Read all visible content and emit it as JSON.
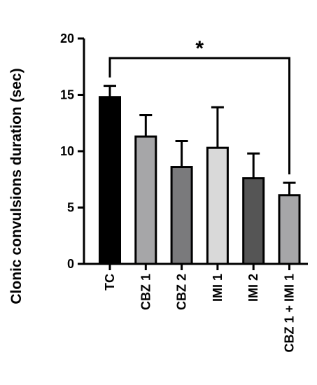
{
  "chart_data": {
    "type": "bar",
    "ylabel": "Clonic convulsions duration (sec)",
    "ylim": [
      0,
      20
    ],
    "yticks": [
      0,
      5,
      10,
      15,
      20
    ],
    "categories": [
      "TC",
      "CBZ 1",
      "CBZ 2",
      "IMI 1",
      "IMI 2",
      "CBZ 1 + IMI 1"
    ],
    "values": [
      14.8,
      11.3,
      8.6,
      10.3,
      7.6,
      6.1
    ],
    "errors": [
      1.0,
      1.9,
      2.3,
      3.6,
      2.2,
      1.1
    ],
    "colors": [
      "#000000",
      "#a6a6a8",
      "#7a7a7c",
      "#d9d9d9",
      "#555555",
      "#a6a6a8"
    ],
    "significance": {
      "from": "TC",
      "to": "CBZ 1 + IMI 1",
      "label": "*"
    }
  }
}
